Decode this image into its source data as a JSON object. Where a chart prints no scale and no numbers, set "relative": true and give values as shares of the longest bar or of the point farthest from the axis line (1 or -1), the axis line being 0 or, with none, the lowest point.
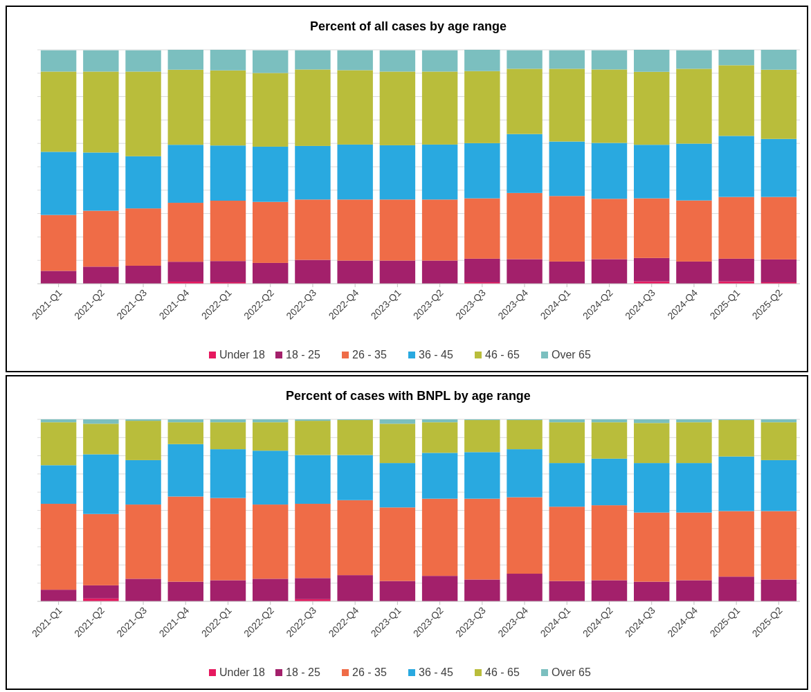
{
  "chart_data": [
    {
      "type": "bar",
      "title": "Percent of all cases by age range",
      "stacked": true,
      "relative": true,
      "grid": "y",
      "legend": "bottom",
      "categories": [
        "2021-Q1",
        "2021-Q2",
        "2021-Q3",
        "2021-Q4",
        "2022-Q1",
        "2022-Q2",
        "2022-Q3",
        "2022-Q4",
        "2023-Q1",
        "2023-Q2",
        "2023-Q3",
        "2023-Q4",
        "2024-Q1",
        "2024-Q2",
        "2024-Q3",
        "2024-Q4",
        "2025-Q1",
        "2025-Q2"
      ],
      "series": [
        {
          "name": "Under 18",
          "color": "#e6195f",
          "values": [
            null,
            null,
            null,
            0.009,
            0.006,
            null,
            null,
            null,
            null,
            null,
            0.006,
            null,
            null,
            null,
            0.01,
            null,
            0.01,
            0.006
          ]
        },
        {
          "name": "18 - 25",
          "color": "#a3206b",
          "values": [
            0.055,
            0.073,
            0.077,
            0.085,
            0.091,
            0.089,
            0.102,
            0.099,
            0.099,
            0.099,
            0.101,
            0.105,
            0.095,
            0.105,
            0.1,
            0.095,
            0.097,
            0.098
          ]
        },
        {
          "name": "26 - 35",
          "color": "#ef6c47",
          "values": [
            0.239,
            0.239,
            0.245,
            0.252,
            0.258,
            0.261,
            0.258,
            0.261,
            0.261,
            0.261,
            0.258,
            0.283,
            0.28,
            0.258,
            0.255,
            0.261,
            0.264,
            0.267
          ]
        },
        {
          "name": "36 - 45",
          "color": "#29a9e0",
          "values": [
            0.27,
            0.249,
            0.223,
            0.248,
            0.236,
            0.236,
            0.229,
            0.235,
            0.232,
            0.235,
            0.236,
            0.252,
            0.233,
            0.239,
            0.229,
            0.243,
            0.261,
            0.248
          ]
        },
        {
          "name": "46 - 65",
          "color": "#b9bd3b",
          "values": [
            0.343,
            0.346,
            0.362,
            0.321,
            0.321,
            0.315,
            0.327,
            0.318,
            0.315,
            0.312,
            0.308,
            0.279,
            0.311,
            0.314,
            0.312,
            0.32,
            0.302,
            0.296
          ]
        },
        {
          "name": "Over 65",
          "color": "#7bbfbf",
          "values": [
            0.091,
            0.091,
            0.091,
            0.085,
            0.088,
            0.097,
            0.082,
            0.085,
            0.091,
            0.091,
            0.091,
            0.079,
            0.079,
            0.082,
            0.094,
            0.079,
            0.066,
            0.085
          ]
        }
      ]
    },
    {
      "type": "bar",
      "title": "Percent of cases with BNPL by age range",
      "stacked": true,
      "relative": true,
      "grid": "y",
      "legend": "bottom",
      "categories": [
        "2021-Q1",
        "2021-Q2",
        "2021-Q3",
        "2021-Q4",
        "2022-Q1",
        "2022-Q2",
        "2022-Q3",
        "2022-Q4",
        "2023-Q1",
        "2023-Q2",
        "2023-Q3",
        "2023-Q4",
        "2024-Q1",
        "2024-Q2",
        "2024-Q3",
        "2024-Q4",
        "2025-Q1",
        "2025-Q2"
      ],
      "series": [
        {
          "name": "Under 18",
          "color": "#e6195f",
          "values": [
            null,
            0.016,
            null,
            null,
            null,
            null,
            0.012,
            null,
            null,
            null,
            null,
            null,
            null,
            null,
            null,
            null,
            null,
            null
          ]
        },
        {
          "name": "18 - 25",
          "color": "#a3206b",
          "values": [
            0.064,
            0.072,
            0.124,
            0.108,
            0.116,
            0.124,
            0.116,
            0.144,
            0.112,
            0.14,
            0.12,
            0.152,
            0.112,
            0.116,
            0.108,
            0.116,
            0.136,
            0.12
          ]
        },
        {
          "name": "26 - 35",
          "color": "#ef6c47",
          "values": [
            0.472,
            0.392,
            0.408,
            0.468,
            0.452,
            0.408,
            0.408,
            0.412,
            0.404,
            0.424,
            0.444,
            0.42,
            0.408,
            0.412,
            0.38,
            0.372,
            0.36,
            0.376
          ]
        },
        {
          "name": "36 - 45",
          "color": "#29a9e0",
          "values": [
            0.212,
            0.328,
            0.244,
            0.288,
            0.268,
            0.296,
            0.268,
            0.248,
            0.244,
            0.252,
            0.256,
            0.264,
            0.24,
            0.256,
            0.272,
            0.272,
            0.3,
            0.28
          ]
        },
        {
          "name": "46 - 65",
          "color": "#b9bd3b",
          "values": [
            0.236,
            0.168,
            0.216,
            0.12,
            0.148,
            0.156,
            0.188,
            0.192,
            0.216,
            0.168,
            0.176,
            0.16,
            0.224,
            0.2,
            0.22,
            0.224,
            0.2,
            0.208
          ]
        },
        {
          "name": "Over 65",
          "color": "#7bbfbf",
          "values": [
            0.016,
            0.024,
            0.008,
            0.016,
            0.016,
            0.016,
            0.008,
            0.004,
            0.024,
            0.016,
            0.004,
            0.004,
            0.016,
            0.016,
            0.02,
            0.016,
            0.004,
            0.016
          ]
        }
      ]
    }
  ]
}
